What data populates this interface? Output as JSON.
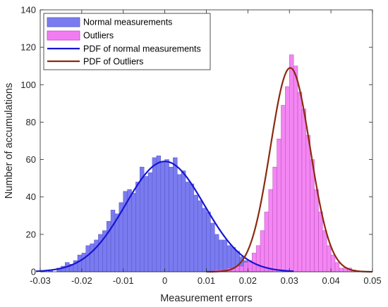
{
  "chart_data": {
    "type": "bar",
    "title": "",
    "xlabel": "Measurement errors",
    "ylabel": "Number of accumulations",
    "xlim": [
      -0.03,
      0.05
    ],
    "ylim": [
      0,
      140
    ],
    "xticks": [
      "-0.03",
      "-0.02",
      "-0.01",
      "0",
      "0.01",
      "0.02",
      "0.03",
      "0.04",
      "0.05"
    ],
    "yticks": [
      "0",
      "20",
      "40",
      "60",
      "80",
      "100",
      "120",
      "140"
    ],
    "grid": false,
    "legend_position": "top-left",
    "bin_width": 0.001,
    "histograms": [
      {
        "name": "Normal measurements",
        "color": "#7b7bf0",
        "edge_color": "#5555cc",
        "bins": [
          [
            -0.028,
            1
          ],
          [
            -0.027,
            0
          ],
          [
            -0.026,
            2
          ],
          [
            -0.025,
            3
          ],
          [
            -0.024,
            5
          ],
          [
            -0.023,
            4
          ],
          [
            -0.022,
            6
          ],
          [
            -0.021,
            9
          ],
          [
            -0.02,
            10
          ],
          [
            -0.019,
            14
          ],
          [
            -0.018,
            15
          ],
          [
            -0.017,
            17
          ],
          [
            -0.016,
            20
          ],
          [
            -0.015,
            22
          ],
          [
            -0.014,
            27
          ],
          [
            -0.013,
            33
          ],
          [
            -0.012,
            31
          ],
          [
            -0.011,
            37
          ],
          [
            -0.01,
            43
          ],
          [
            -0.009,
            44
          ],
          [
            -0.008,
            42
          ],
          [
            -0.007,
            48
          ],
          [
            -0.006,
            56
          ],
          [
            -0.005,
            51
          ],
          [
            -0.004,
            53
          ],
          [
            -0.003,
            61
          ],
          [
            -0.002,
            62
          ],
          [
            -0.001,
            59
          ],
          [
            0.0,
            60
          ],
          [
            0.001,
            56
          ],
          [
            0.002,
            61
          ],
          [
            0.003,
            52
          ],
          [
            0.004,
            54
          ],
          [
            0.005,
            48
          ],
          [
            0.006,
            47
          ],
          [
            0.007,
            41
          ],
          [
            0.008,
            38
          ],
          [
            0.009,
            34
          ],
          [
            0.01,
            32
          ],
          [
            0.011,
            26
          ],
          [
            0.012,
            20
          ],
          [
            0.013,
            17
          ],
          [
            0.014,
            17
          ],
          [
            0.015,
            14
          ],
          [
            0.016,
            13
          ],
          [
            0.017,
            11
          ],
          [
            0.018,
            8
          ],
          [
            0.019,
            6
          ],
          [
            0.02,
            5
          ],
          [
            0.021,
            4
          ],
          [
            0.022,
            3
          ],
          [
            0.023,
            2
          ],
          [
            0.024,
            1
          ],
          [
            0.025,
            1
          ]
        ],
        "pdf": {
          "name": "PDF of normal measurements",
          "color": "#1616d0",
          "mean": 0.0,
          "peak": 59,
          "sigma": 0.0095,
          "x_range": [
            -0.031,
            0.031
          ]
        }
      },
      {
        "name": "Outliers",
        "color": "#f27cf2",
        "edge_color": "#b84fb8",
        "bins": [
          [
            0.012,
            1
          ],
          [
            0.013,
            1
          ],
          [
            0.014,
            1
          ],
          [
            0.015,
            2
          ],
          [
            0.016,
            2
          ],
          [
            0.017,
            3
          ],
          [
            0.018,
            3
          ],
          [
            0.019,
            5
          ],
          [
            0.02,
            6
          ],
          [
            0.021,
            10
          ],
          [
            0.022,
            14
          ],
          [
            0.023,
            22
          ],
          [
            0.024,
            32
          ],
          [
            0.025,
            44
          ],
          [
            0.026,
            56
          ],
          [
            0.027,
            71
          ],
          [
            0.028,
            89
          ],
          [
            0.029,
            99
          ],
          [
            0.03,
            116
          ],
          [
            0.031,
            110
          ],
          [
            0.032,
            96
          ],
          [
            0.033,
            87
          ],
          [
            0.034,
            73
          ],
          [
            0.035,
            60
          ],
          [
            0.036,
            44
          ],
          [
            0.037,
            32
          ],
          [
            0.038,
            22
          ],
          [
            0.039,
            14
          ],
          [
            0.04,
            9
          ],
          [
            0.041,
            5
          ],
          [
            0.042,
            2
          ],
          [
            0.043,
            2
          ],
          [
            0.044,
            2
          ],
          [
            0.045,
            1
          ]
        ],
        "pdf": {
          "name": "PDF of Outliers",
          "color": "#8b2a10",
          "mean": 0.0302,
          "peak": 109,
          "sigma": 0.0048,
          "x_range": [
            0.01,
            0.05
          ]
        }
      }
    ]
  }
}
